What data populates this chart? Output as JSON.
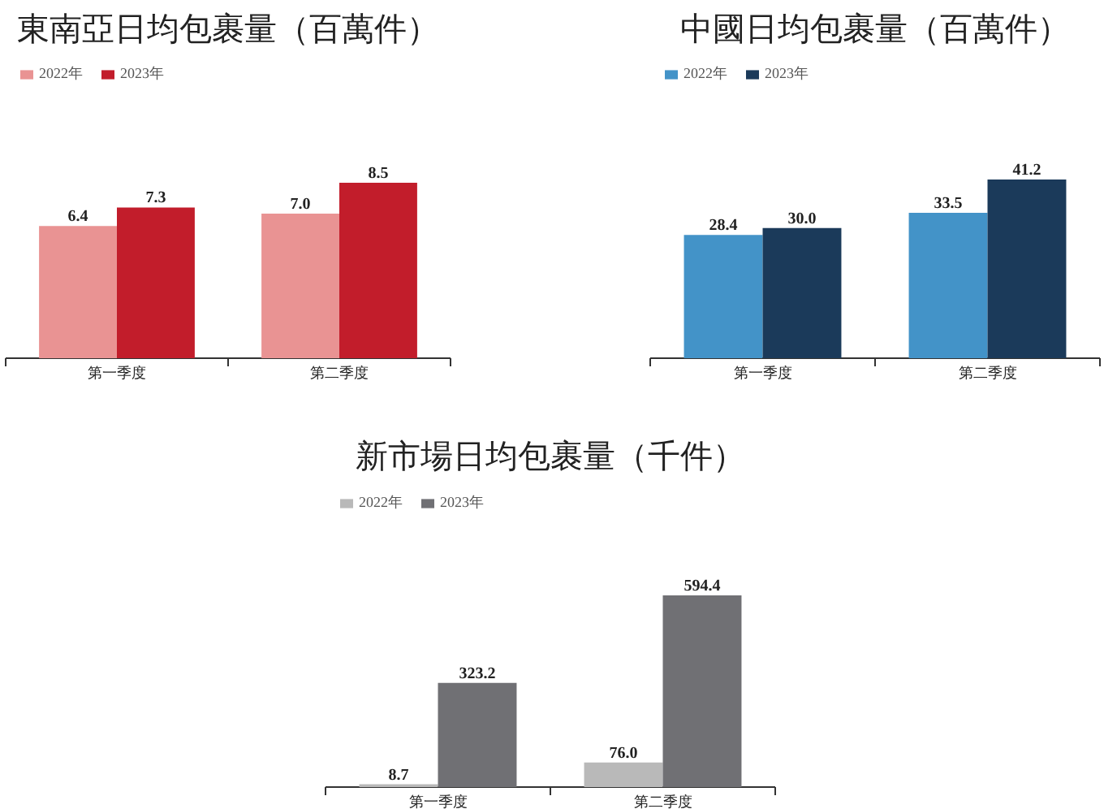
{
  "chart_data": [
    {
      "type": "bar",
      "title": "東南亞日均包裹量（百萬件）",
      "categories": [
        "第一季度",
        "第二季度"
      ],
      "series": [
        {
          "name": "2022年",
          "color": "#e99393",
          "values": [
            6.4,
            7.0
          ],
          "value_labels": [
            "6.4",
            "7.0"
          ]
        },
        {
          "name": "2023年",
          "color": "#c21d2b",
          "values": [
            7.3,
            8.5
          ],
          "value_labels": [
            "7.3",
            "8.5"
          ]
        }
      ],
      "legend": "top left",
      "tick_labels": "x"
    },
    {
      "type": "bar",
      "title": "中國日均包裹量（百萬件）",
      "categories": [
        "第一季度",
        "第二季度"
      ],
      "series": [
        {
          "name": "2022年",
          "color": "#4393c8",
          "values": [
            28.4,
            33.5
          ],
          "value_labels": [
            "28.4",
            "33.5"
          ]
        },
        {
          "name": "2023年",
          "color": "#1b3a5a",
          "values": [
            30.0,
            41.2
          ],
          "value_labels": [
            "30.0",
            "41.2"
          ]
        }
      ],
      "legend": "top left",
      "tick_labels": "x"
    },
    {
      "type": "bar",
      "title": "新市場日均包裹量（千件）",
      "categories": [
        "第一季度",
        "第二季度"
      ],
      "series": [
        {
          "name": "2022年",
          "color": "#b9b9b9",
          "values": [
            8.7,
            76.0
          ],
          "value_labels": [
            "8.7",
            "76.0"
          ]
        },
        {
          "name": "2023年",
          "color": "#707074",
          "values": [
            323.2,
            594.4
          ],
          "value_labels": [
            "323.2",
            "594.4"
          ]
        }
      ],
      "legend": "top left",
      "tick_labels": "x"
    }
  ]
}
